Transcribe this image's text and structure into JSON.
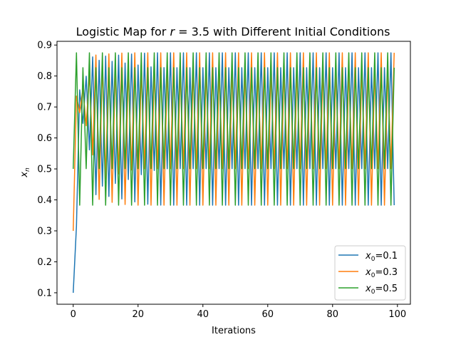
{
  "chart_data": {
    "type": "line",
    "title": "Logistic Map for r = 3.5 with Different Initial Conditions",
    "title_prefix": "Logistic Map for ",
    "title_var": "r",
    "title_suffix": " = 3.5 with Different Initial Conditions",
    "xlabel": "Iterations",
    "ylabel_var": "x",
    "ylabel_sub": "n",
    "r": 3.5,
    "iterations": 100,
    "xlim": [
      -5,
      104
    ],
    "ylim": [
      0.063,
      0.912
    ],
    "xticks": [
      0,
      20,
      40,
      60,
      80,
      100
    ],
    "yticks": [
      0.1,
      0.2,
      0.3,
      0.4,
      0.5,
      0.6,
      0.7,
      0.8,
      0.9
    ],
    "grid": false,
    "legend_position": "bottom-right",
    "series": [
      {
        "name": "x0=0.1",
        "legend_var": "x",
        "legend_sub": "0",
        "legend_value": "=0.1",
        "x0": 0.1,
        "color": "#1f77b4"
      },
      {
        "name": "x0=0.3",
        "legend_var": "x",
        "legend_sub": "0",
        "legend_value": "=0.3",
        "x0": 0.3,
        "color": "#ff7f0e"
      },
      {
        "name": "x0=0.5",
        "legend_var": "x",
        "legend_sub": "0",
        "legend_value": "=0.5",
        "x0": 0.5,
        "color": "#2ca02c"
      }
    ]
  }
}
